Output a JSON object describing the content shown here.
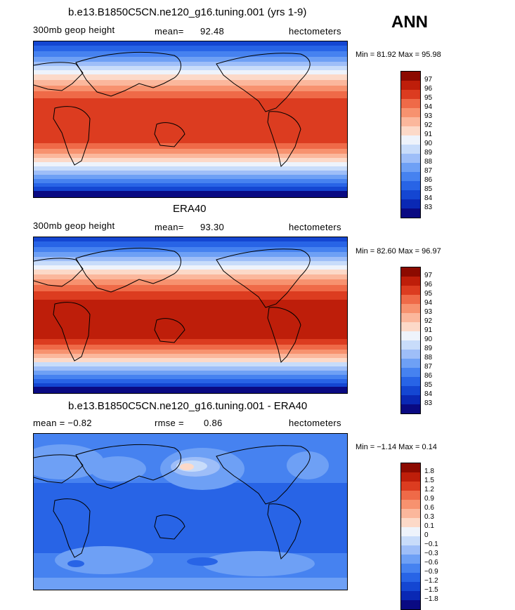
{
  "season": "ANN",
  "units_label": "hectometers",
  "panels": [
    {
      "title": "b.e13.B1850C5CN.ne120_g16.tuning.001 (yrs 1-9)",
      "left_label": "300mb geop height",
      "stat1_label": "mean=",
      "stat1_value": "92.48",
      "stat2_label": "",
      "stat2_value": "",
      "units": "hectometers",
      "range_text": "Min =  81.92 Max =  95.98"
    },
    {
      "title": "ERA40",
      "left_label": "300mb geop height",
      "stat1_label": "mean=",
      "stat1_value": "93.30",
      "stat2_label": "",
      "stat2_value": "",
      "units": "hectometers",
      "range_text": "Min =  82.60 Max =  96.97"
    },
    {
      "title": "b.e13.B1850C5CN.ne120_g16.tuning.001 - ERA40",
      "left_label": "mean =  −0.82",
      "stat1_label": "rmse =",
      "stat1_value": "0.86",
      "stat2_label": "",
      "stat2_value": "",
      "units": "hectometers",
      "range_text": "Min =  −1.14 Max =   0.14"
    }
  ],
  "chart_data": [
    {
      "type": "heatmap",
      "title": "b.e13.B1850C5CN.ne120_g16.tuning.001 (yrs 1-9)",
      "variable": "300mb geop height",
      "units": "hectometers",
      "mean": 92.48,
      "min": 81.92,
      "max": 95.98,
      "levels": [
        83,
        84,
        85,
        86,
        87,
        88,
        89,
        90,
        91,
        92,
        93,
        94,
        95,
        96,
        97
      ],
      "level_labels": [
        "97",
        "96",
        "95",
        "94",
        "93",
        "92",
        "91",
        "90",
        "89",
        "88",
        "87",
        "86",
        "85",
        "84",
        "83"
      ],
      "colors": [
        "#0a0a82",
        "#0a28b4",
        "#1446d2",
        "#2864e6",
        "#4682f0",
        "#6ea0f5",
        "#9ebef8",
        "#c8dcfa",
        "#eef3fb",
        "#fcd9c8",
        "#fbb79c",
        "#f7926f",
        "#ef6a48",
        "#dc3c20",
        "#be1e0a",
        "#8c0a00"
      ]
    },
    {
      "type": "heatmap",
      "title": "ERA40",
      "variable": "300mb geop height",
      "units": "hectometers",
      "mean": 93.3,
      "min": 82.6,
      "max": 96.97,
      "levels": [
        83,
        84,
        85,
        86,
        87,
        88,
        89,
        90,
        91,
        92,
        93,
        94,
        95,
        96,
        97
      ],
      "level_labels": [
        "97",
        "96",
        "95",
        "94",
        "93",
        "92",
        "91",
        "90",
        "89",
        "88",
        "87",
        "86",
        "85",
        "84",
        "83"
      ],
      "colors": [
        "#0a0a82",
        "#0a28b4",
        "#1446d2",
        "#2864e6",
        "#4682f0",
        "#6ea0f5",
        "#9ebef8",
        "#c8dcfa",
        "#eef3fb",
        "#fcd9c8",
        "#fbb79c",
        "#f7926f",
        "#ef6a48",
        "#dc3c20",
        "#be1e0a",
        "#8c0a00"
      ]
    },
    {
      "type": "heatmap",
      "title": "b.e13.B1850C5CN.ne120_g16.tuning.001 - ERA40",
      "units": "hectometers",
      "mean": -0.82,
      "rmse": 0.86,
      "min": -1.14,
      "max": 0.14,
      "levels": [
        -1.8,
        -1.5,
        -1.2,
        -0.9,
        -0.6,
        -0.3,
        -0.1,
        0,
        0.1,
        0.3,
        0.6,
        0.9,
        1.2,
        1.5,
        1.8
      ],
      "level_labels": [
        "1.8",
        "1.5",
        "1.2",
        "0.9",
        "0.6",
        "0.3",
        "0.1",
        "0",
        "−0.1",
        "−0.3",
        "−0.6",
        "−0.9",
        "−1.2",
        "−1.5",
        "−1.8"
      ],
      "colors": [
        "#0a0a82",
        "#0a28b4",
        "#1446d2",
        "#2864e6",
        "#4682f0",
        "#6ea0f5",
        "#9ebef8",
        "#c8dcfa",
        "#eef3fb",
        "#fcd9c8",
        "#fbb79c",
        "#f7926f",
        "#ef6a48",
        "#dc3c20",
        "#be1e0a",
        "#8c0a00"
      ]
    }
  ]
}
